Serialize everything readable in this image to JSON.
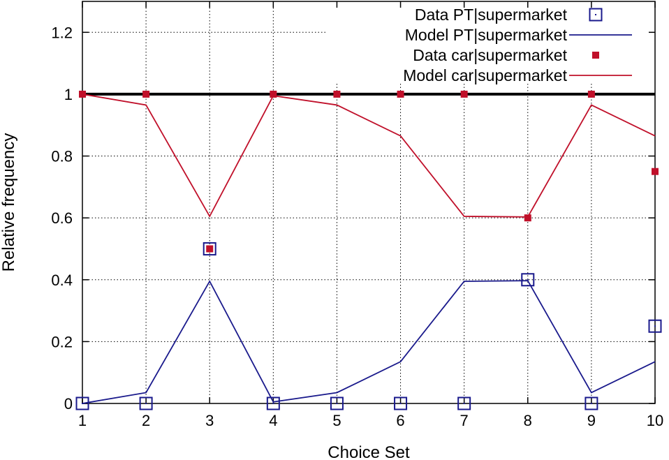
{
  "chart_data": {
    "type": "line",
    "xlabel": "Choice Set",
    "ylabel": "Relative frequency",
    "xlim": [
      1,
      10
    ],
    "ylim": [
      0,
      1.3
    ],
    "x_ticks": [
      1,
      2,
      3,
      4,
      5,
      6,
      7,
      8,
      9,
      10
    ],
    "y_ticks": [
      0,
      0.2,
      0.4,
      0.6,
      0.8,
      1,
      1.2
    ],
    "y_tick_labels": [
      "0",
      "0.2",
      "0.4",
      "0.6",
      "0.8",
      "1",
      "1.2"
    ],
    "grid": true,
    "legend_position": "top-right",
    "reference_line": {
      "y": 1,
      "color": "#000000"
    },
    "series": [
      {
        "name": "Data  PT|supermarket",
        "kind": "points",
        "marker": "open-square",
        "color": "#1a1a8c",
        "x": [
          1,
          2,
          3,
          4,
          5,
          6,
          7,
          8,
          9,
          10
        ],
        "values": [
          0,
          0,
          0.5,
          0,
          0,
          0,
          0,
          0.4,
          0,
          0.25
        ]
      },
      {
        "name": "Model PT|supermarket",
        "kind": "line",
        "color": "#1a1a8c",
        "x": [
          1,
          2,
          3,
          4,
          5,
          6,
          7,
          8,
          9,
          10
        ],
        "values": [
          0,
          0.035,
          0.395,
          0.005,
          0.035,
          0.135,
          0.395,
          0.397,
          0.035,
          0.135
        ]
      },
      {
        "name": "Data  car|supermarket",
        "kind": "points",
        "marker": "filled-square",
        "color": "#c0102a",
        "x": [
          1,
          2,
          3,
          4,
          5,
          6,
          7,
          8,
          9,
          10
        ],
        "values": [
          1,
          1,
          0.5,
          1,
          1,
          1,
          1,
          0.6,
          1,
          0.75
        ]
      },
      {
        "name": "Model car|supermarket",
        "kind": "line",
        "color": "#c0102a",
        "x": [
          1,
          2,
          3,
          4,
          5,
          6,
          7,
          8,
          9,
          10
        ],
        "values": [
          1,
          0.965,
          0.605,
          0.995,
          0.965,
          0.865,
          0.605,
          0.603,
          0.965,
          0.865
        ]
      }
    ]
  }
}
